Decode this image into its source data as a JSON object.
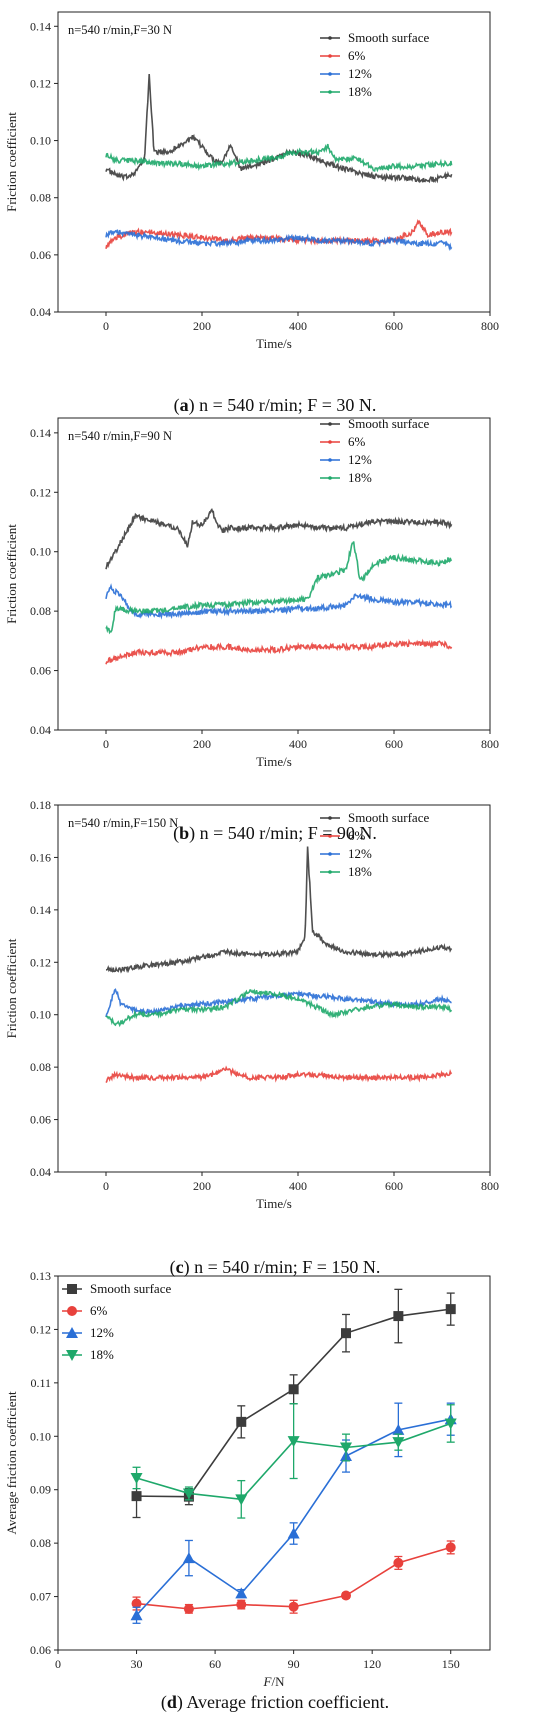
{
  "captions": [
    {
      "letter": "a",
      "rest": ") n = 540 r/min; F = 30 N."
    },
    {
      "letter": "b",
      "rest": ") n = 540 r/min; F = 90 N."
    },
    {
      "letter": "c",
      "rest": ") n = 540 r/min; F = 150 N."
    },
    {
      "letter": "d",
      "rest": ") Average friction coefficient."
    }
  ],
  "colors": {
    "smooth": "#3c3c3c",
    "p6": "#e8413c",
    "p12": "#2a6fd6",
    "p18": "#1ea86a"
  },
  "chart_data": [
    {
      "type": "line",
      "annotation": "n=540 r/min,F=30 N",
      "xlabel": "Time/s",
      "ylabel": "Friction coefficient",
      "xlim": [
        -100,
        800
      ],
      "ylim": [
        0.04,
        0.145
      ],
      "xticks": [
        0,
        200,
        400,
        600,
        800
      ],
      "yticks": [
        0.04,
        0.06,
        0.08,
        0.1,
        0.12,
        0.14
      ],
      "legend_position": "top-right",
      "series": [
        {
          "name": "Smooth surface",
          "color": "#3c3c3c",
          "x": [
            0,
            20,
            40,
            60,
            80,
            90,
            100,
            130,
            160,
            180,
            200,
            220,
            240,
            260,
            280,
            300,
            340,
            380,
            420,
            460,
            500,
            540,
            580,
            620,
            660,
            700,
            720
          ],
          "y": [
            0.09,
            0.088,
            0.087,
            0.089,
            0.093,
            0.123,
            0.096,
            0.096,
            0.099,
            0.101,
            0.098,
            0.094,
            0.092,
            0.099,
            0.09,
            0.091,
            0.093,
            0.096,
            0.095,
            0.092,
            0.09,
            0.088,
            0.087,
            0.087,
            0.086,
            0.087,
            0.088
          ]
        },
        {
          "name": "6%",
          "color": "#e8413c",
          "x": [
            0,
            20,
            60,
            100,
            150,
            200,
            250,
            300,
            350,
            400,
            450,
            500,
            550,
            600,
            640,
            650,
            670,
            700,
            720
          ],
          "y": [
            0.063,
            0.066,
            0.068,
            0.068,
            0.067,
            0.066,
            0.065,
            0.066,
            0.066,
            0.065,
            0.065,
            0.065,
            0.065,
            0.065,
            0.068,
            0.072,
            0.067,
            0.068,
            0.068
          ]
        },
        {
          "name": "12%",
          "color": "#2a6fd6",
          "x": [
            0,
            20,
            60,
            100,
            150,
            200,
            250,
            300,
            350,
            400,
            450,
            500,
            550,
            600,
            650,
            700,
            720
          ],
          "y": [
            0.067,
            0.068,
            0.067,
            0.066,
            0.065,
            0.064,
            0.064,
            0.065,
            0.065,
            0.066,
            0.065,
            0.065,
            0.064,
            0.065,
            0.064,
            0.064,
            0.063
          ]
        },
        {
          "name": "18%",
          "color": "#1ea86a",
          "x": [
            0,
            20,
            60,
            100,
            150,
            200,
            250,
            300,
            350,
            400,
            450,
            462,
            480,
            520,
            560,
            600,
            650,
            700,
            720
          ],
          "y": [
            0.095,
            0.093,
            0.093,
            0.092,
            0.092,
            0.091,
            0.092,
            0.093,
            0.094,
            0.096,
            0.096,
            0.098,
            0.093,
            0.094,
            0.09,
            0.091,
            0.091,
            0.092,
            0.092
          ]
        }
      ]
    },
    {
      "type": "line",
      "annotation": "n=540 r/min,F=90 N",
      "xlabel": "Time/s",
      "ylabel": "Friction coefficient",
      "xlim": [
        -100,
        800
      ],
      "ylim": [
        0.04,
        0.145
      ],
      "xticks": [
        0,
        200,
        400,
        600,
        800
      ],
      "yticks": [
        0.04,
        0.06,
        0.08,
        0.1,
        0.12,
        0.14
      ],
      "legend_position": "top-right",
      "series": [
        {
          "name": "Smooth surface",
          "color": "#3c3c3c",
          "x": [
            0,
            20,
            40,
            60,
            100,
            150,
            170,
            180,
            200,
            220,
            240,
            260,
            300,
            350,
            400,
            450,
            500,
            550,
            600,
            650,
            700,
            720
          ],
          "y": [
            0.095,
            0.1,
            0.106,
            0.112,
            0.11,
            0.108,
            0.102,
            0.11,
            0.109,
            0.114,
            0.107,
            0.108,
            0.108,
            0.108,
            0.109,
            0.108,
            0.108,
            0.11,
            0.11,
            0.11,
            0.11,
            0.109
          ]
        },
        {
          "name": "6%",
          "color": "#e8413c",
          "x": [
            0,
            20,
            60,
            100,
            150,
            200,
            250,
            300,
            350,
            400,
            450,
            500,
            550,
            600,
            650,
            700,
            720
          ],
          "y": [
            0.063,
            0.064,
            0.066,
            0.066,
            0.066,
            0.068,
            0.068,
            0.067,
            0.067,
            0.068,
            0.068,
            0.068,
            0.068,
            0.069,
            0.069,
            0.069,
            0.068
          ]
        },
        {
          "name": "12%",
          "color": "#2a6fd6",
          "x": [
            0,
            10,
            30,
            60,
            100,
            150,
            200,
            250,
            300,
            350,
            400,
            450,
            500,
            520,
            560,
            600,
            650,
            700,
            720
          ],
          "y": [
            0.085,
            0.088,
            0.085,
            0.079,
            0.079,
            0.079,
            0.08,
            0.08,
            0.08,
            0.08,
            0.081,
            0.081,
            0.082,
            0.085,
            0.084,
            0.083,
            0.083,
            0.082,
            0.082
          ]
        },
        {
          "name": "18%",
          "color": "#1ea86a",
          "x": [
            0,
            10,
            20,
            60,
            100,
            150,
            200,
            250,
            300,
            350,
            400,
            420,
            440,
            480,
            500,
            515,
            530,
            560,
            600,
            650,
            700,
            720
          ],
          "y": [
            0.075,
            0.072,
            0.081,
            0.08,
            0.08,
            0.081,
            0.082,
            0.082,
            0.083,
            0.083,
            0.084,
            0.084,
            0.091,
            0.093,
            0.094,
            0.104,
            0.09,
            0.096,
            0.098,
            0.097,
            0.096,
            0.098
          ]
        }
      ]
    },
    {
      "type": "line",
      "annotation": "n=540 r/min,F=150 N",
      "xlabel": "Time/s",
      "ylabel": "Friction coefficient",
      "xlim": [
        -100,
        800
      ],
      "ylim": [
        0.04,
        0.18
      ],
      "xticks": [
        0,
        200,
        400,
        600,
        800
      ],
      "yticks": [
        0.04,
        0.06,
        0.08,
        0.1,
        0.12,
        0.14,
        0.16,
        0.18
      ],
      "legend_position": "top-right",
      "series": [
        {
          "name": "Smooth surface",
          "color": "#3c3c3c",
          "x": [
            0,
            20,
            60,
            100,
            150,
            200,
            250,
            300,
            350,
            400,
            415,
            420,
            430,
            460,
            500,
            550,
            600,
            650,
            700,
            720
          ],
          "y": [
            0.118,
            0.117,
            0.118,
            0.119,
            0.12,
            0.122,
            0.124,
            0.123,
            0.123,
            0.124,
            0.13,
            0.164,
            0.132,
            0.127,
            0.124,
            0.123,
            0.123,
            0.124,
            0.126,
            0.125
          ]
        },
        {
          "name": "6%",
          "color": "#e8413c",
          "x": [
            0,
            20,
            60,
            100,
            150,
            200,
            250,
            280,
            300,
            350,
            400,
            450,
            500,
            550,
            600,
            650,
            700,
            720
          ],
          "y": [
            0.075,
            0.077,
            0.076,
            0.076,
            0.076,
            0.076,
            0.079,
            0.077,
            0.076,
            0.076,
            0.077,
            0.077,
            0.076,
            0.076,
            0.076,
            0.076,
            0.077,
            0.078
          ]
        },
        {
          "name": "12%",
          "color": "#2a6fd6",
          "x": [
            0,
            20,
            30,
            60,
            100,
            150,
            200,
            250,
            300,
            350,
            400,
            450,
            500,
            550,
            600,
            650,
            700,
            720
          ],
          "y": [
            0.1,
            0.11,
            0.104,
            0.102,
            0.101,
            0.103,
            0.104,
            0.105,
            0.106,
            0.107,
            0.108,
            0.107,
            0.106,
            0.105,
            0.104,
            0.104,
            0.106,
            0.105
          ]
        },
        {
          "name": "18%",
          "color": "#1ea86a",
          "x": [
            0,
            20,
            60,
            100,
            150,
            200,
            250,
            300,
            350,
            400,
            450,
            470,
            500,
            550,
            600,
            650,
            700,
            720
          ],
          "y": [
            0.1,
            0.096,
            0.1,
            0.1,
            0.102,
            0.102,
            0.103,
            0.109,
            0.108,
            0.106,
            0.102,
            0.1,
            0.101,
            0.103,
            0.104,
            0.103,
            0.103,
            0.102
          ]
        }
      ]
    },
    {
      "type": "line",
      "xlabel": "F/N",
      "ylabel": "Average friction coefficient",
      "xlim": [
        0,
        165
      ],
      "ylim": [
        0.06,
        0.13
      ],
      "xticks": [
        0,
        30,
        60,
        90,
        120,
        150
      ],
      "yticks": [
        0.06,
        0.07,
        0.08,
        0.09,
        0.1,
        0.11,
        0.12,
        0.13
      ],
      "legend_position": "top-left",
      "series": [
        {
          "name": "Smooth surface",
          "color": "#3c3c3c",
          "marker": "square",
          "x": [
            30,
            50,
            70,
            90,
            110,
            130,
            150
          ],
          "y": [
            0.0888,
            0.0887,
            0.1027,
            0.1088,
            0.1193,
            0.1225,
            0.1238
          ],
          "err": [
            0.004,
            0.0015,
            0.003,
            0.0027,
            0.0035,
            0.005,
            0.003
          ]
        },
        {
          "name": "6%",
          "color": "#e8413c",
          "marker": "circle",
          "x": [
            30,
            50,
            70,
            90,
            110,
            130,
            150
          ],
          "y": [
            0.0687,
            0.0677,
            0.0685,
            0.0681,
            0.0702,
            0.0763,
            0.0792
          ],
          "err": [
            0.0012,
            0.0008,
            0.0008,
            0.0012,
            0.0005,
            0.0012,
            0.0012
          ]
        },
        {
          "name": "12%",
          "color": "#2a6fd6",
          "marker": "triangle-up",
          "x": [
            30,
            50,
            70,
            90,
            110,
            130,
            150
          ],
          "y": [
            0.0665,
            0.0772,
            0.0706,
            0.0818,
            0.0963,
            0.1012,
            0.1032
          ],
          "err": [
            0.0015,
            0.0033,
            0.0007,
            0.002,
            0.003,
            0.005,
            0.003
          ]
        },
        {
          "name": "18%",
          "color": "#1ea86a",
          "marker": "triangle-down",
          "x": [
            30,
            50,
            70,
            90,
            110,
            130,
            150
          ],
          "y": [
            0.0922,
            0.0893,
            0.0882,
            0.0991,
            0.0979,
            0.0989,
            0.1024
          ],
          "err": [
            0.002,
            0.0012,
            0.0035,
            0.007,
            0.0025,
            0.0015,
            0.0035
          ]
        }
      ]
    }
  ]
}
